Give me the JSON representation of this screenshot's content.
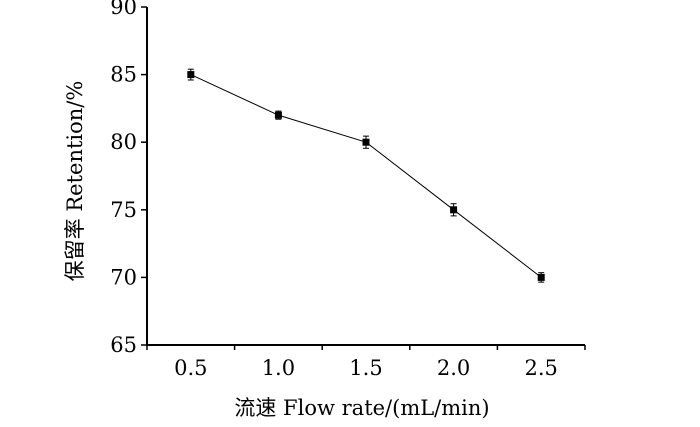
{
  "chart_data": {
    "type": "line",
    "title": "",
    "xlabel": "流速 Flow rate/(mL/min)",
    "ylabel": "保留率 Retention/%",
    "x_tick_labels": [
      "0.5",
      "1.0",
      "1.5",
      "2.0",
      "2.5"
    ],
    "y_tick_labels": [
      "65",
      "70",
      "75",
      "80",
      "85",
      "90"
    ],
    "xlim": [
      0.25,
      2.75
    ],
    "ylim": [
      65,
      90
    ],
    "grid": false,
    "series": [
      {
        "x": [
          0.5,
          1.0,
          1.5,
          2.0,
          2.5
        ],
        "y": [
          85.0,
          82.0,
          80.0,
          75.0,
          70.0
        ],
        "error": [
          0.4,
          0.3,
          0.45,
          0.45,
          0.35
        ],
        "color": "#000000",
        "marker": "square"
      }
    ]
  }
}
